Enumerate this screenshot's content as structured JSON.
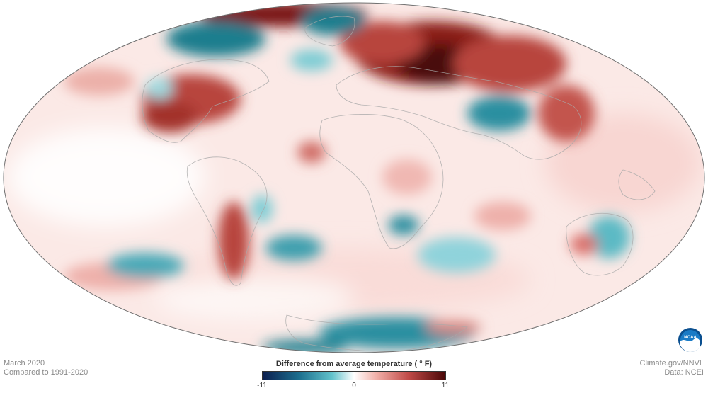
{
  "map": {
    "projection": "Mollweide (global)",
    "variable": "temperature anomaly",
    "colors": {
      "cold_extreme": "#0d1f4f",
      "cold": "#2a8fa0",
      "neutral": "#ffffff",
      "warm": "#d9706a",
      "warm_extreme": "#4a0707"
    }
  },
  "footer": {
    "date": "March 2020",
    "baseline": "Compared to 1991-2020",
    "credit": "Climate.gov/NNVL",
    "data_source": "Data: NCEI"
  },
  "legend": {
    "title": "Difference from average temperature  ( ° F)",
    "min_label": "-11",
    "mid_label": "0",
    "max_label": "11",
    "min": -11,
    "max": 11
  },
  "logo": {
    "text": "NOAA",
    "icon": "noaa-logo-icon"
  }
}
